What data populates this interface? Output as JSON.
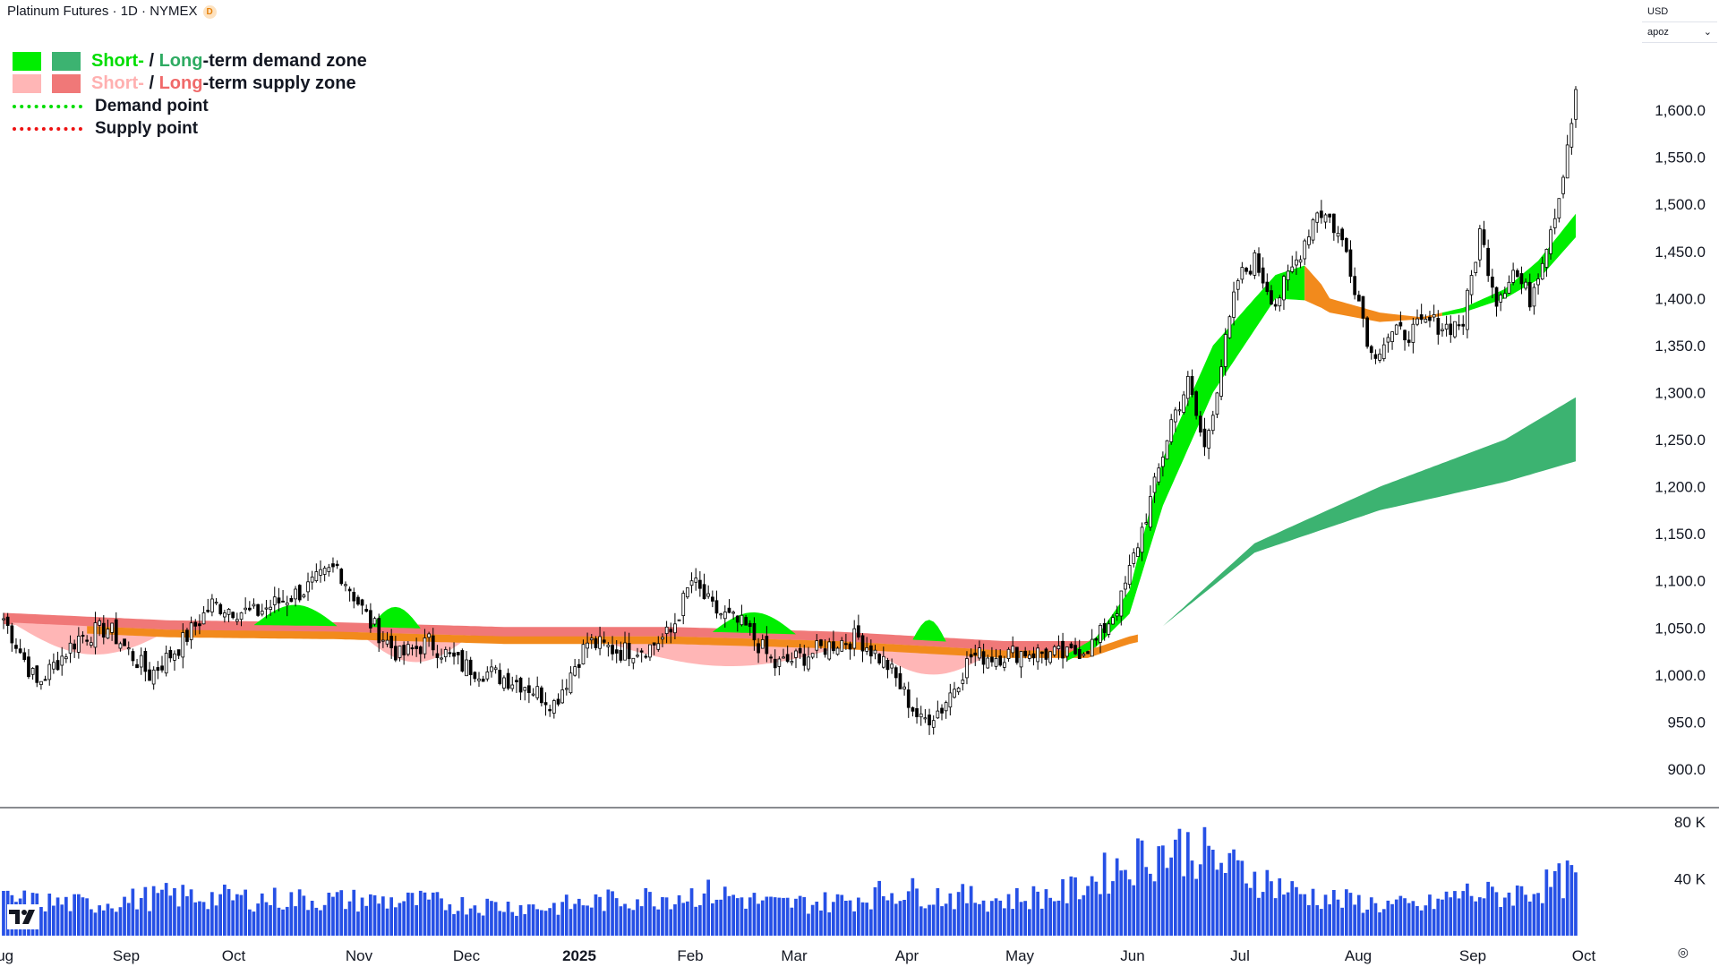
{
  "header": {
    "title": "Platinum Futures · 1D · NYMEX",
    "badge": "D"
  },
  "legend": {
    "demand_short": "Short-",
    "demand_sep": " / ",
    "demand_long": "Long",
    "demand_tail": "-term demand zone",
    "supply_short": "Short-",
    "supply_sep": " / ",
    "supply_long": "Long",
    "supply_tail": "-term supply zone",
    "demand_point": "Demand point",
    "supply_point": "Supply point"
  },
  "currency": {
    "currency_label": "USD",
    "indicator_label": "apoz"
  },
  "colors": {
    "short_demand": "#00ee00",
    "long_demand": "#3cb371",
    "short_supply": "#ffb6b6",
    "long_supply": "#f07878",
    "neutral_band": "#f28a1c",
    "demand_point": "#00dd00",
    "supply_point": "#ee1111",
    "candle_up": "#ffffff",
    "candle_down": "#000000",
    "volume": "#2650e6"
  },
  "chart_data": {
    "type": "candlestick",
    "title": "Platinum Futures · 1D · NYMEX",
    "xlabel": "",
    "ylabel": "",
    "y_ticks": [
      "1,600.0",
      "1,550.0",
      "1,500.0",
      "1,450.0",
      "1,400.0",
      "1,350.0",
      "1,300.0",
      "1,250.0",
      "1,200.0",
      "1,150.0",
      "1,100.0",
      "1,050.0",
      "1,000.0",
      "950.0",
      "900.0"
    ],
    "ylim": [
      880,
      1660
    ],
    "x_ticks": [
      "Aug",
      "Sep",
      "Oct",
      "Nov",
      "Dec",
      "2025",
      "Feb",
      "Mar",
      "Apr",
      "May",
      "Jun",
      "Jul",
      "Aug",
      "Sep",
      "Oct"
    ],
    "volume_ticks": [
      "80 K",
      "40 K"
    ],
    "volume_ylim": [
      0,
      85000
    ],
    "grid": false,
    "legend_position": "top-left",
    "close_anchors": [
      [
        0,
        1060
      ],
      [
        8,
        990
      ],
      [
        18,
        1040
      ],
      [
        25,
        1050
      ],
      [
        35,
        1000
      ],
      [
        42,
        1030
      ],
      [
        50,
        1075
      ],
      [
        60,
        1065
      ],
      [
        72,
        1090
      ],
      [
        80,
        1115
      ],
      [
        88,
        1055
      ],
      [
        95,
        1020
      ],
      [
        102,
        1035
      ],
      [
        110,
        1010
      ],
      [
        118,
        1000
      ],
      [
        125,
        990
      ],
      [
        132,
        970
      ],
      [
        140,
        1035
      ],
      [
        148,
        1025
      ],
      [
        155,
        1030
      ],
      [
        160,
        1045
      ],
      [
        165,
        1100
      ],
      [
        170,
        1070
      ],
      [
        178,
        1050
      ],
      [
        185,
        1010
      ],
      [
        192,
        1020
      ],
      [
        200,
        1035
      ],
      [
        205,
        1040
      ],
      [
        212,
        1010
      ],
      [
        220,
        950
      ],
      [
        225,
        965
      ],
      [
        232,
        1020
      ],
      [
        238,
        1020
      ],
      [
        245,
        1025
      ],
      [
        255,
        1020
      ],
      [
        262,
        1035
      ],
      [
        268,
        1080
      ],
      [
        272,
        1140
      ],
      [
        276,
        1200
      ],
      [
        280,
        1270
      ],
      [
        284,
        1310
      ],
      [
        288,
        1240
      ],
      [
        292,
        1330
      ],
      [
        296,
        1420
      ],
      [
        300,
        1440
      ],
      [
        305,
        1395
      ],
      [
        310,
        1440
      ],
      [
        315,
        1495
      ],
      [
        318,
        1485
      ],
      [
        322,
        1450
      ],
      [
        326,
        1380
      ],
      [
        328,
        1340
      ],
      [
        332,
        1360
      ],
      [
        338,
        1365
      ],
      [
        342,
        1375
      ],
      [
        346,
        1370
      ],
      [
        350,
        1375
      ],
      [
        354,
        1470
      ],
      [
        358,
        1400
      ],
      [
        362,
        1430
      ],
      [
        366,
        1400
      ],
      [
        370,
        1460
      ],
      [
        373,
        1510
      ],
      [
        375,
        1565
      ],
      [
        377,
        1615
      ]
    ],
    "days": 378,
    "long_demand_start": 278,
    "zone_anchors": {
      "flat_base": [
        [
          0,
          1060
        ],
        [
          40,
          1052
        ],
        [
          80,
          1050
        ],
        [
          120,
          1045
        ],
        [
          160,
          1045
        ],
        [
          200,
          1040
        ],
        [
          240,
          1030
        ],
        [
          260,
          1030
        ],
        [
          270,
          1045
        ],
        [
          280,
          1055
        ]
      ],
      "long_lower": [
        [
          278,
          1052
        ],
        [
          300,
          1130
        ],
        [
          330,
          1175
        ],
        [
          360,
          1205
        ],
        [
          377,
          1227
        ]
      ],
      "long_upper": [
        [
          278,
          1052
        ],
        [
          300,
          1140
        ],
        [
          330,
          1200
        ],
        [
          360,
          1250
        ],
        [
          377,
          1295
        ]
      ],
      "short_lower": [
        [
          255,
          1015
        ],
        [
          262,
          1030
        ],
        [
          270,
          1065
        ],
        [
          278,
          1180
        ],
        [
          290,
          1300
        ],
        [
          305,
          1400
        ],
        [
          312,
          1398
        ],
        [
          316,
          1390
        ],
        [
          318,
          1385
        ],
        [
          330,
          1375
        ],
        [
          340,
          1378
        ],
        [
          350,
          1385
        ],
        [
          360,
          1400
        ],
        [
          368,
          1420
        ],
        [
          377,
          1465
        ]
      ],
      "short_upper": [
        [
          255,
          1022
        ],
        [
          262,
          1040
        ],
        [
          270,
          1090
        ],
        [
          278,
          1230
        ],
        [
          290,
          1350
        ],
        [
          305,
          1425
        ],
        [
          312,
          1435
        ],
        [
          316,
          1415
        ],
        [
          318,
          1400
        ],
        [
          330,
          1385
        ],
        [
          340,
          1380
        ],
        [
          350,
          1390
        ],
        [
          360,
          1410
        ],
        [
          368,
          1440
        ],
        [
          377,
          1490
        ]
      ]
    },
    "volume_anchors": [
      [
        0,
        25000
      ],
      [
        20,
        22000
      ],
      [
        40,
        28000
      ],
      [
        60,
        26000
      ],
      [
        80,
        25000
      ],
      [
        100,
        24000
      ],
      [
        110,
        22000
      ],
      [
        130,
        20000
      ],
      [
        150,
        26000
      ],
      [
        170,
        30000
      ],
      [
        185,
        22000
      ],
      [
        200,
        24000
      ],
      [
        215,
        32000
      ],
      [
        225,
        28000
      ],
      [
        240,
        25000
      ],
      [
        255,
        30000
      ],
      [
        265,
        45000
      ],
      [
        275,
        58000
      ],
      [
        285,
        62000
      ],
      [
        292,
        50000
      ],
      [
        300,
        42000
      ],
      [
        310,
        30000
      ],
      [
        320,
        25000
      ],
      [
        330,
        22000
      ],
      [
        340,
        20000
      ],
      [
        350,
        30000
      ],
      [
        360,
        28000
      ],
      [
        370,
        35000
      ],
      [
        377,
        42000
      ]
    ]
  }
}
